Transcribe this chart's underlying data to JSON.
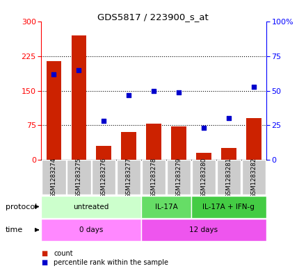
{
  "title": "GDS5817 / 223900_s_at",
  "samples": [
    "GSM1283274",
    "GSM1283275",
    "GSM1283276",
    "GSM1283277",
    "GSM1283278",
    "GSM1283279",
    "GSM1283280",
    "GSM1283281",
    "GSM1283282"
  ],
  "counts": [
    215,
    270,
    30,
    60,
    78,
    72,
    15,
    25,
    90
  ],
  "percentile_ranks": [
    62,
    65,
    28,
    47,
    50,
    49,
    23,
    30,
    53
  ],
  "left_yticks": [
    0,
    75,
    150,
    225,
    300
  ],
  "right_yticks": [
    0,
    25,
    50,
    75,
    100
  ],
  "left_ylim": [
    0,
    300
  ],
  "right_ylim": [
    0,
    100
  ],
  "bar_color": "#cc2200",
  "dot_color": "#0000cc",
  "protocol_groups": [
    {
      "label": "untreated",
      "start": 0,
      "end": 4,
      "color": "#ccffcc"
    },
    {
      "label": "IL-17A",
      "start": 4,
      "end": 6,
      "color": "#66dd66"
    },
    {
      "label": "IL-17A + IFN-g",
      "start": 6,
      "end": 9,
      "color": "#44cc44"
    }
  ],
  "time_groups": [
    {
      "label": "0 days",
      "start": 0,
      "end": 4,
      "color": "#ff88ff"
    },
    {
      "label": "12 days",
      "start": 4,
      "end": 9,
      "color": "#ee55ee"
    }
  ],
  "legend_count_color": "#cc2200",
  "legend_dot_color": "#0000cc",
  "sample_bg_color": "#cccccc",
  "plot_bg_color": "#ffffff"
}
